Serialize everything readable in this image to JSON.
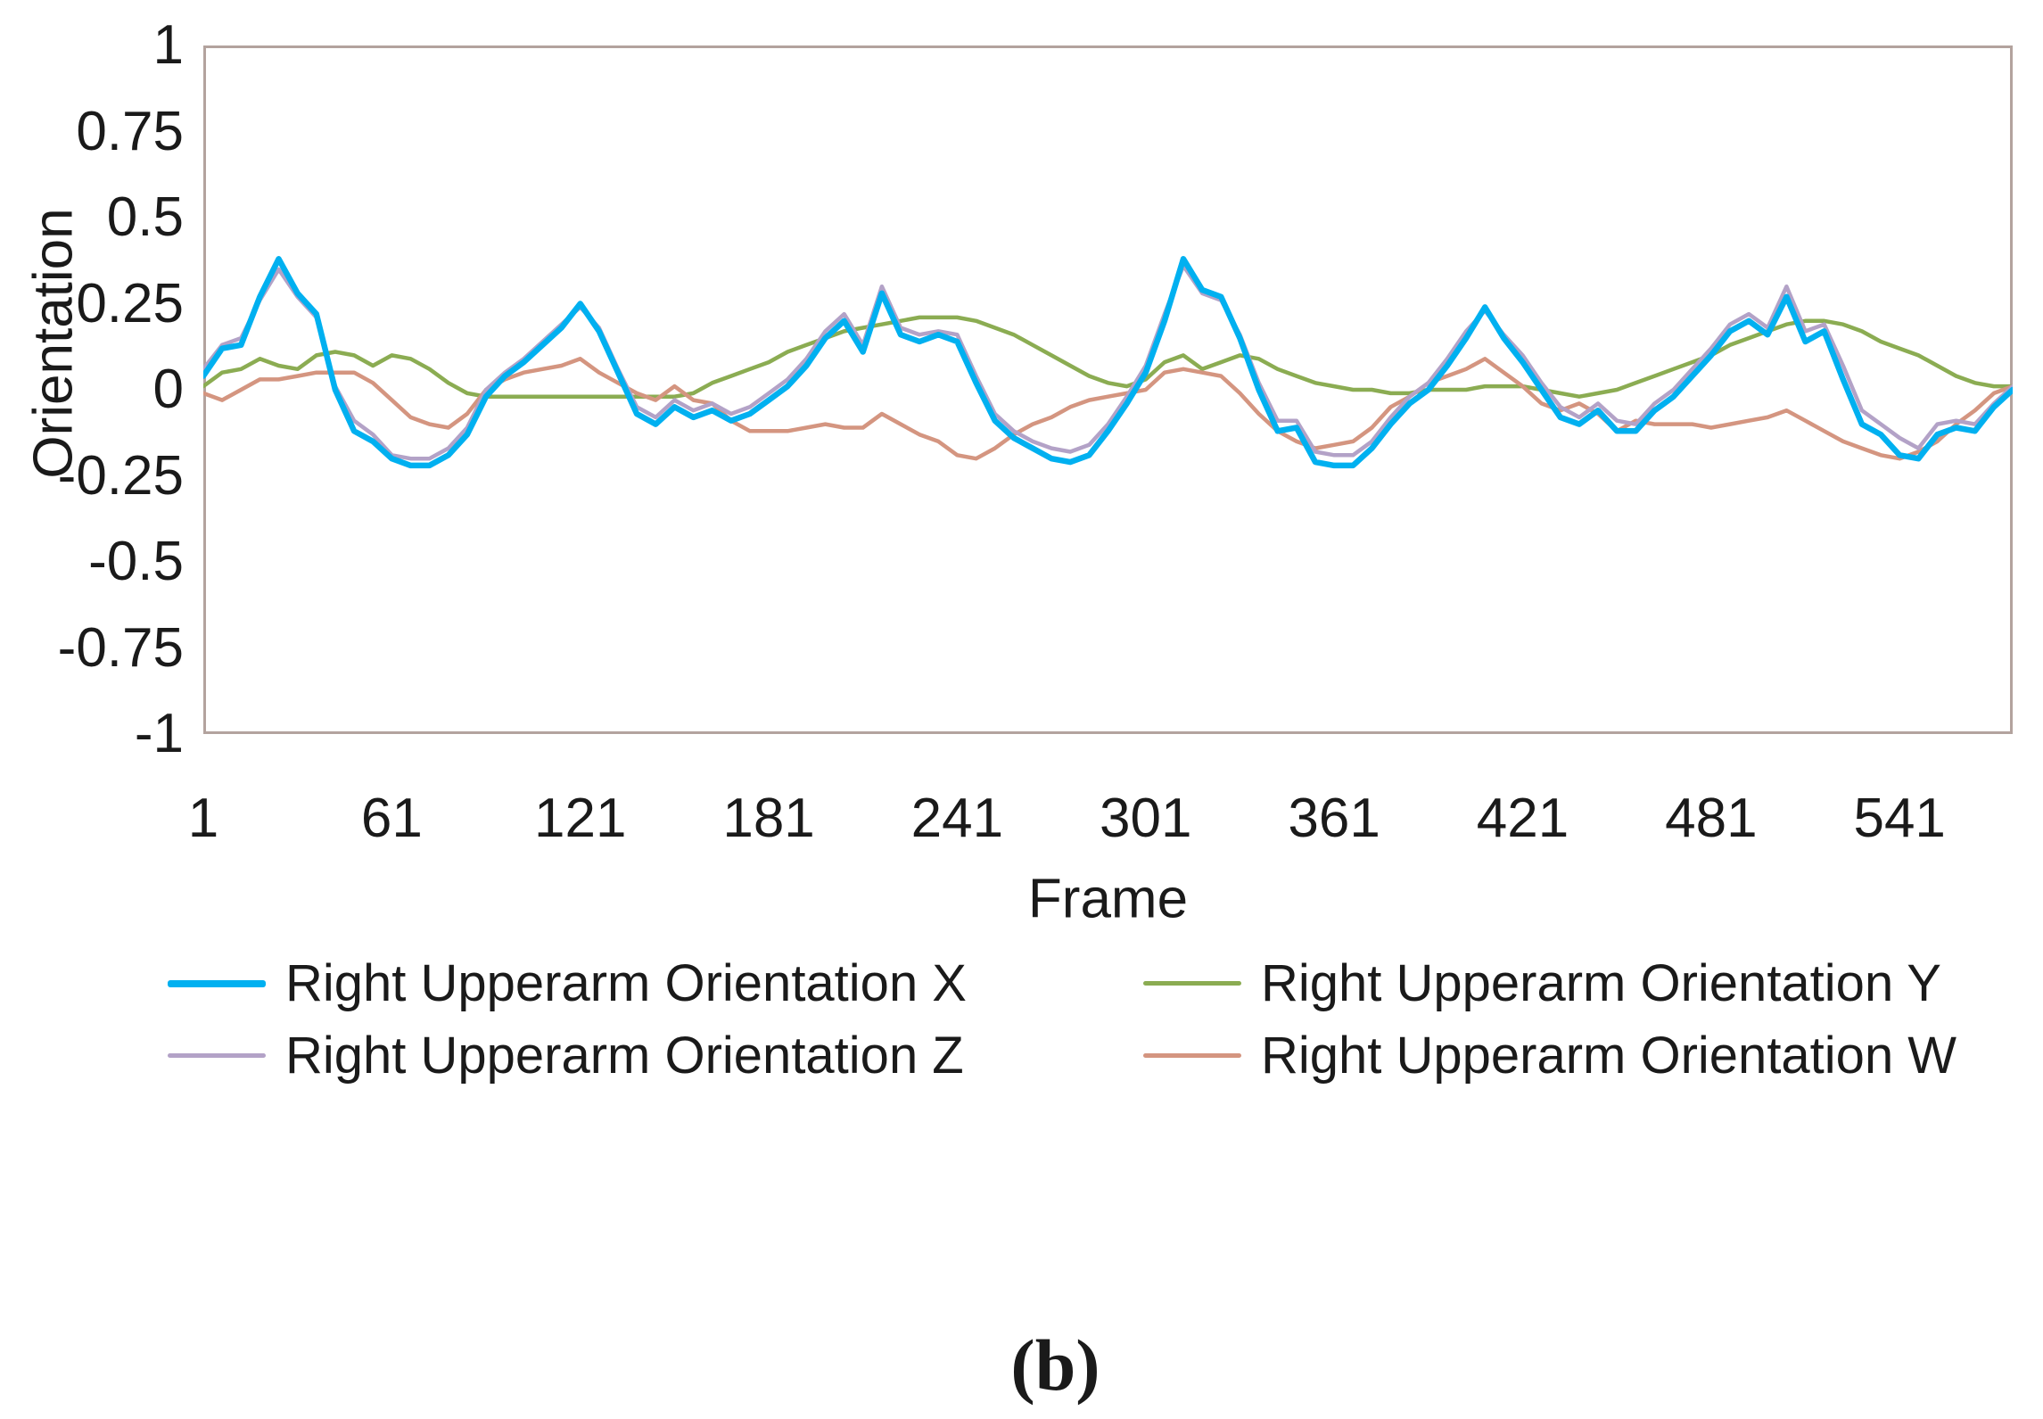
{
  "figure": {
    "caption": "(b)"
  },
  "chart_data": {
    "type": "line",
    "title": "",
    "xlabel": "Frame",
    "ylabel": "Orientation",
    "xlim": [
      1,
      577
    ],
    "ylim": [
      -1,
      1
    ],
    "grid": false,
    "legend_position": "bottom",
    "plot_border_color": "#b3a39e",
    "x_ticks": [
      1,
      61,
      121,
      181,
      241,
      301,
      361,
      421,
      481,
      541
    ],
    "y_ticks": [
      "1",
      "0.75",
      "0.5",
      "0.25",
      "0",
      "-0.25",
      "-0.5",
      "-0.75",
      "-1"
    ],
    "frame_start": 1,
    "frame_step": 6,
    "draw_order": [
      1,
      3,
      2,
      0
    ],
    "series": [
      {
        "key": "x",
        "name": "Right Upperarm Orientation X",
        "color": "#00b0f0",
        "width": 6.5,
        "swatch_height": 8,
        "values": [
          0.04,
          0.12,
          0.13,
          0.27,
          0.38,
          0.28,
          0.22,
          0.0,
          -0.12,
          -0.15,
          -0.2,
          -0.22,
          -0.22,
          -0.19,
          -0.13,
          -0.02,
          0.04,
          0.08,
          0.13,
          0.18,
          0.25,
          0.17,
          0.05,
          -0.07,
          -0.1,
          -0.05,
          -0.08,
          -0.06,
          -0.09,
          -0.07,
          -0.03,
          0.01,
          0.07,
          0.15,
          0.2,
          0.11,
          0.28,
          0.16,
          0.14,
          0.16,
          0.14,
          0.02,
          -0.09,
          -0.14,
          -0.17,
          -0.2,
          -0.21,
          -0.19,
          -0.12,
          -0.04,
          0.05,
          0.2,
          0.38,
          0.29,
          0.27,
          0.15,
          0.0,
          -0.12,
          -0.11,
          -0.21,
          -0.22,
          -0.22,
          -0.17,
          -0.1,
          -0.04,
          0.0,
          0.07,
          0.15,
          0.24,
          0.15,
          0.08,
          0.0,
          -0.08,
          -0.1,
          -0.06,
          -0.12,
          -0.12,
          -0.06,
          -0.02,
          0.04,
          0.1,
          0.17,
          0.2,
          0.16,
          0.27,
          0.14,
          0.17,
          0.03,
          -0.1,
          -0.13,
          -0.19,
          -0.2,
          -0.13,
          -0.11,
          -0.12,
          -0.05,
          0.0
        ]
      },
      {
        "key": "y",
        "name": "Right Upperarm Orientation Y",
        "color": "#8bac52",
        "width": 4.5,
        "swatch_height": 5,
        "values": [
          0.01,
          0.05,
          0.06,
          0.09,
          0.07,
          0.06,
          0.1,
          0.11,
          0.1,
          0.07,
          0.1,
          0.09,
          0.06,
          0.02,
          -0.01,
          -0.02,
          -0.02,
          -0.02,
          -0.02,
          -0.02,
          -0.02,
          -0.02,
          -0.02,
          -0.02,
          -0.02,
          -0.02,
          -0.01,
          0.02,
          0.04,
          0.06,
          0.08,
          0.11,
          0.13,
          0.15,
          0.17,
          0.18,
          0.19,
          0.2,
          0.21,
          0.21,
          0.21,
          0.2,
          0.18,
          0.16,
          0.13,
          0.1,
          0.07,
          0.04,
          0.02,
          0.01,
          0.03,
          0.08,
          0.1,
          0.06,
          0.08,
          0.1,
          0.09,
          0.06,
          0.04,
          0.02,
          0.01,
          0.0,
          0.0,
          -0.01,
          -0.01,
          0.0,
          0.0,
          0.0,
          0.01,
          0.01,
          0.01,
          0.0,
          -0.01,
          -0.02,
          -0.01,
          0.0,
          0.02,
          0.04,
          0.06,
          0.08,
          0.1,
          0.13,
          0.15,
          0.17,
          0.19,
          0.2,
          0.2,
          0.19,
          0.17,
          0.14,
          0.12,
          0.1,
          0.07,
          0.04,
          0.02,
          0.01,
          0.01
        ]
      },
      {
        "key": "z",
        "name": "Right Upperarm Orientation Z",
        "color": "#b3a2c7",
        "width": 4.5,
        "swatch_height": 5,
        "values": [
          0.06,
          0.13,
          0.15,
          0.26,
          0.35,
          0.27,
          0.21,
          0.01,
          -0.09,
          -0.13,
          -0.19,
          -0.2,
          -0.2,
          -0.17,
          -0.11,
          0.0,
          0.05,
          0.09,
          0.14,
          0.19,
          0.24,
          0.18,
          0.06,
          -0.05,
          -0.08,
          -0.03,
          -0.06,
          -0.04,
          -0.07,
          -0.05,
          -0.01,
          0.03,
          0.09,
          0.17,
          0.22,
          0.13,
          0.3,
          0.18,
          0.16,
          0.17,
          0.16,
          0.04,
          -0.07,
          -0.12,
          -0.15,
          -0.17,
          -0.18,
          -0.16,
          -0.1,
          -0.02,
          0.07,
          0.22,
          0.36,
          0.28,
          0.26,
          0.16,
          0.02,
          -0.09,
          -0.09,
          -0.18,
          -0.19,
          -0.19,
          -0.15,
          -0.08,
          -0.02,
          0.02,
          0.09,
          0.17,
          0.23,
          0.16,
          0.1,
          0.02,
          -0.05,
          -0.08,
          -0.04,
          -0.09,
          -0.1,
          -0.04,
          0.0,
          0.06,
          0.12,
          0.19,
          0.22,
          0.18,
          0.3,
          0.17,
          0.19,
          0.07,
          -0.06,
          -0.1,
          -0.14,
          -0.17,
          -0.1,
          -0.09,
          -0.1,
          -0.04,
          0.01
        ]
      },
      {
        "key": "w",
        "name": "Right Upperarm Orientation W",
        "color": "#d49580",
        "width": 4.5,
        "swatch_height": 5,
        "values": [
          -0.01,
          -0.03,
          0.0,
          0.03,
          0.03,
          0.04,
          0.05,
          0.05,
          0.05,
          0.02,
          -0.03,
          -0.08,
          -0.1,
          -0.11,
          -0.07,
          0.0,
          0.03,
          0.05,
          0.06,
          0.07,
          0.09,
          0.05,
          0.02,
          -0.01,
          -0.03,
          0.01,
          -0.03,
          -0.04,
          -0.09,
          -0.12,
          -0.12,
          -0.12,
          -0.11,
          -0.1,
          -0.11,
          -0.11,
          -0.07,
          -0.1,
          -0.13,
          -0.15,
          -0.19,
          -0.2,
          -0.17,
          -0.13,
          -0.1,
          -0.08,
          -0.05,
          -0.03,
          -0.02,
          -0.01,
          0.0,
          0.05,
          0.06,
          0.05,
          0.04,
          -0.01,
          -0.07,
          -0.12,
          -0.15,
          -0.17,
          -0.16,
          -0.15,
          -0.11,
          -0.05,
          -0.02,
          0.02,
          0.04,
          0.06,
          0.09,
          0.05,
          0.01,
          -0.04,
          -0.06,
          -0.04,
          -0.07,
          -0.12,
          -0.09,
          -0.1,
          -0.1,
          -0.1,
          -0.11,
          -0.1,
          -0.09,
          -0.08,
          -0.06,
          -0.09,
          -0.12,
          -0.15,
          -0.17,
          -0.19,
          -0.2,
          -0.18,
          -0.15,
          -0.1,
          -0.06,
          -0.01,
          0.01
        ]
      }
    ],
    "legend_layout_order": [
      0,
      1,
      2,
      3
    ]
  }
}
